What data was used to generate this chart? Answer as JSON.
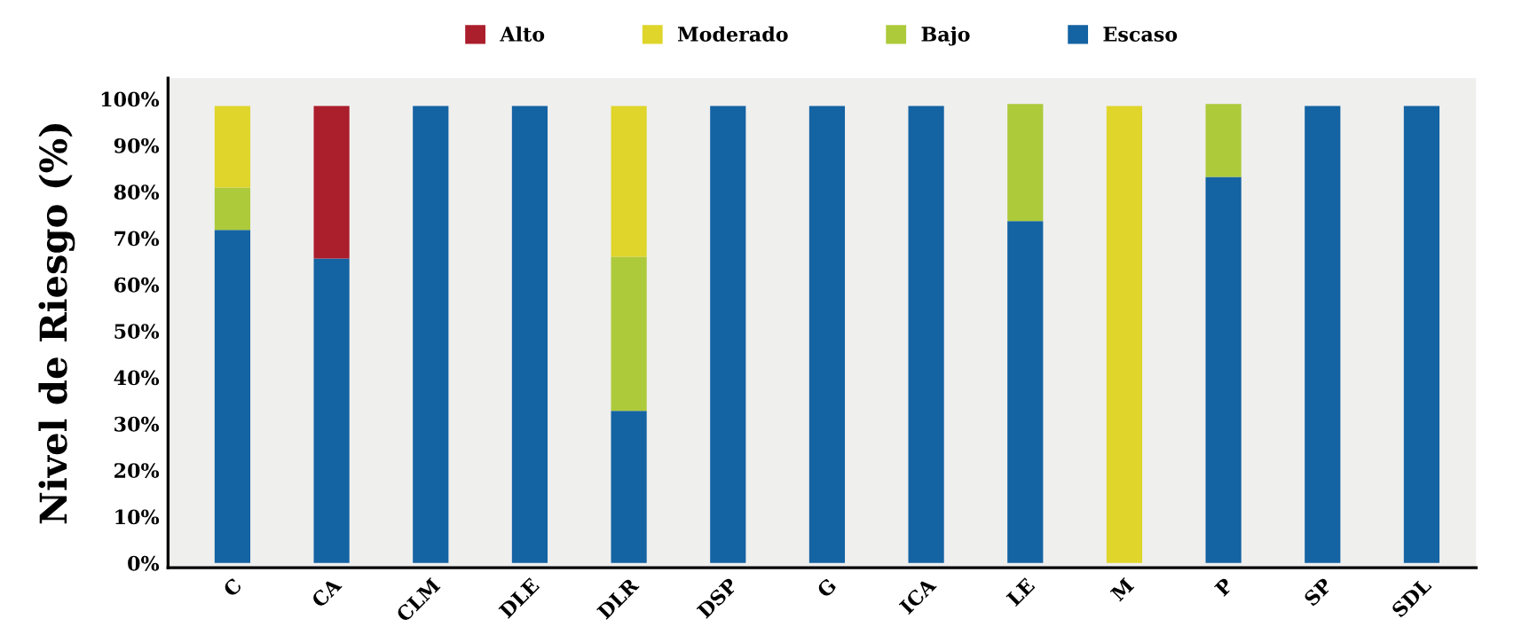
{
  "chart_data": {
    "type": "bar",
    "stacked": true,
    "ylabel": "Nivel de Riesgo (%)",
    "legend": "top",
    "categories": [
      "C",
      "CA",
      "CLM",
      "DLE",
      "DLR",
      "DSP",
      "G",
      "ICA",
      "LE",
      "M",
      "P",
      "SP",
      "SDL"
    ],
    "series": [
      {
        "name": "Escaso",
        "color": "#1463a3",
        "values": [
          71.8,
          65.6,
          98.5,
          98.5,
          32.8,
          98.5,
          98.5,
          98.5,
          73.7,
          0,
          83.2,
          98.5,
          98.5
        ]
      },
      {
        "name": "Bajo",
        "color": "#adca3a",
        "values": [
          9.1,
          0,
          0,
          0,
          33.2,
          0,
          0,
          0,
          25.2,
          0,
          15.7,
          0,
          0
        ]
      },
      {
        "name": "Moderado",
        "color": "#dfd52b",
        "values": [
          17.6,
          0,
          0,
          0,
          32.5,
          0,
          0,
          0,
          0,
          98.5,
          0,
          0,
          0
        ]
      },
      {
        "name": "Alto",
        "color": "#ab1e2c",
        "values": [
          0,
          32.9,
          0,
          0,
          0,
          0,
          0,
          0,
          0,
          0,
          0,
          0,
          0
        ]
      }
    ],
    "ylim": [
      -1,
      104.5
    ],
    "yticks": [
      {
        "value": 0,
        "label": "0%"
      },
      {
        "value": 10,
        "label": "10%"
      },
      {
        "value": 20,
        "label": "20%"
      },
      {
        "value": 30,
        "label": "30%"
      },
      {
        "value": 40,
        "label": "40%"
      },
      {
        "value": 50,
        "label": "50%"
      },
      {
        "value": 60,
        "label": "60%"
      },
      {
        "value": 70,
        "label": "70%"
      },
      {
        "value": 80,
        "label": "80%"
      },
      {
        "value": 90,
        "label": "90%"
      },
      {
        "value": 100,
        "label": "100%"
      }
    ],
    "grid": false
  }
}
